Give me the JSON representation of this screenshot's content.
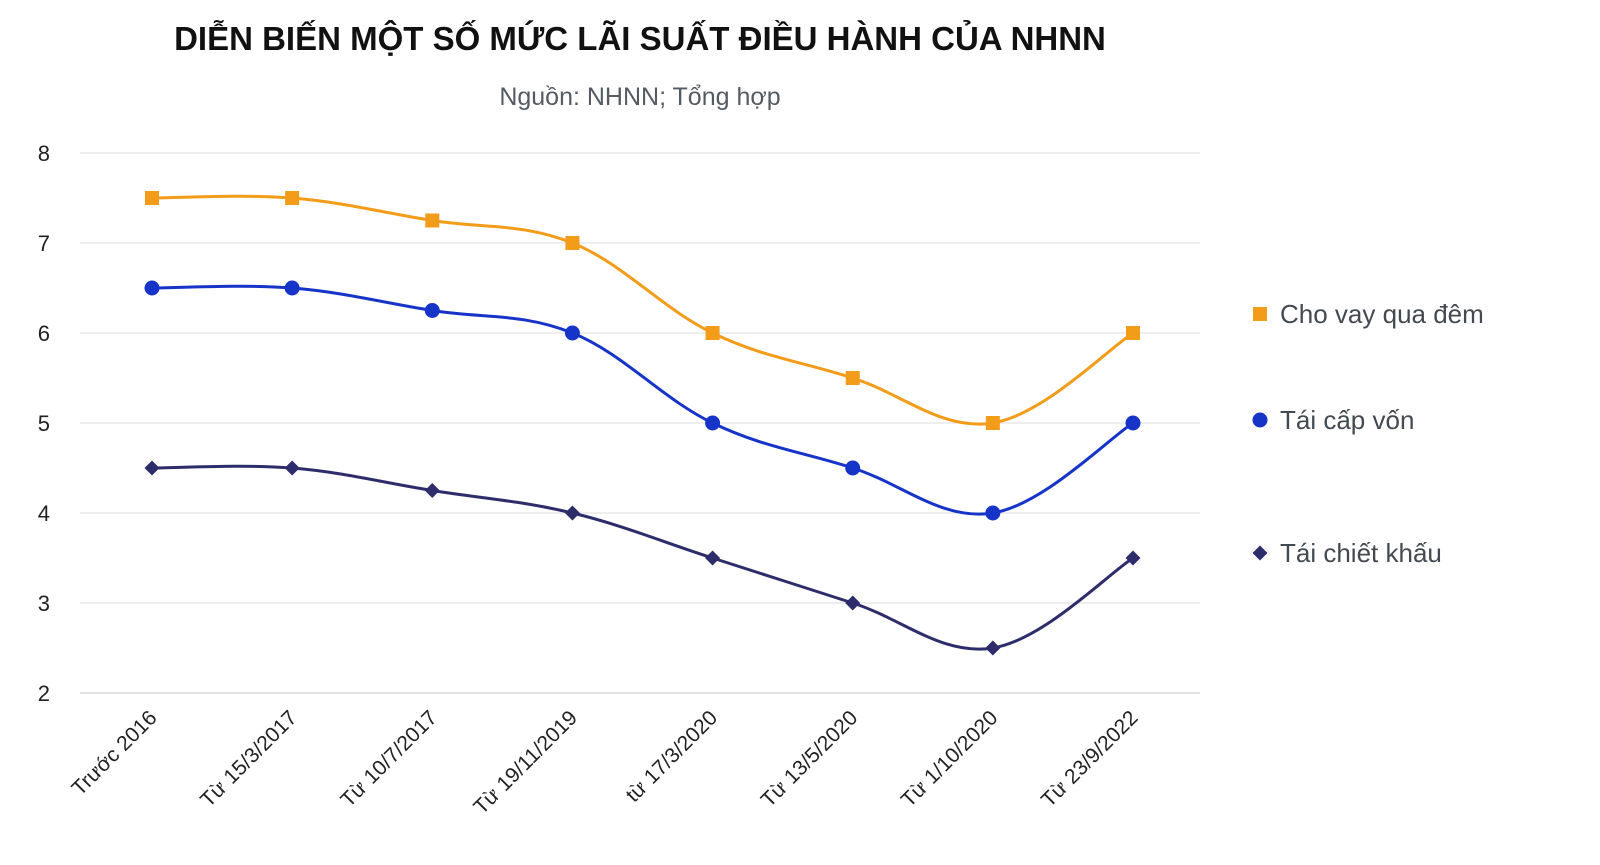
{
  "chart_data": {
    "type": "line",
    "title": "DIỄN BIẾN MỘT SỐ MỨC LÃI SUẤT ĐIỀU HÀNH CỦA NHNN",
    "subtitle": "Nguồn: NHNN; Tổng hợp",
    "categories": [
      "Trước 2016",
      "Từ 15/3/2017",
      "Từ 10/7/2017",
      "Từ 19/11/2019",
      "từ 17/3/2020",
      "Từ 13/5/2020",
      "Từ 1/10/2020",
      "Từ 23/9/2022"
    ],
    "ylim": [
      2,
      8
    ],
    "yticks": [
      2,
      3,
      4,
      5,
      6,
      7,
      8
    ],
    "grid": true,
    "legend_position": "right",
    "series": [
      {
        "name": "Cho vay qua đêm",
        "color": "#f39c1a",
        "marker": "square",
        "values": [
          7.5,
          7.5,
          7.25,
          7.0,
          6.0,
          5.5,
          5.0,
          6.0
        ]
      },
      {
        "name": "Tái cấp vốn",
        "color": "#1634c8",
        "marker": "circle",
        "values": [
          6.5,
          6.5,
          6.25,
          6.0,
          5.0,
          4.5,
          4.0,
          5.0
        ]
      },
      {
        "name": "Tái chiết khấu",
        "color": "#2e2d6b",
        "marker": "diamond",
        "values": [
          4.5,
          4.5,
          4.25,
          4.0,
          3.5,
          3.0,
          2.5,
          3.5
        ]
      }
    ]
  }
}
